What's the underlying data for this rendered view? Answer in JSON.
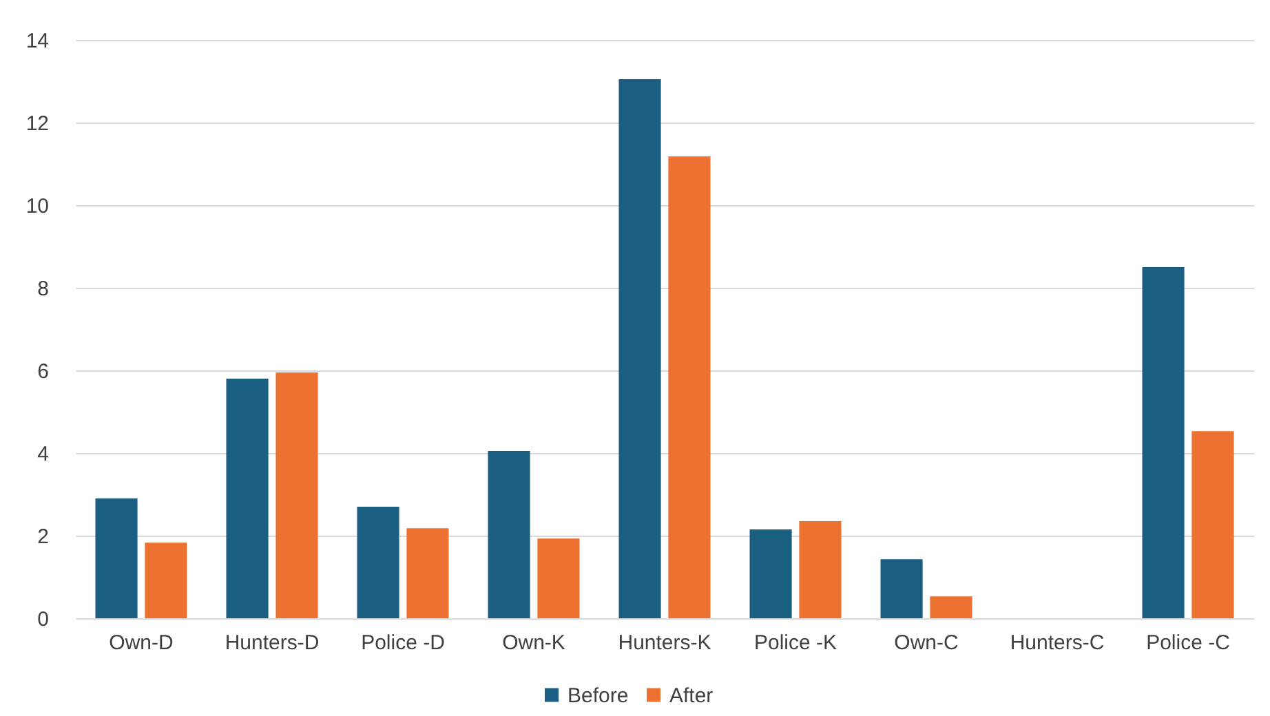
{
  "chart_data": {
    "type": "bar",
    "categories": [
      "Own-D",
      "Hunters-D",
      "Police -D",
      "Own-K",
      "Hunters-K",
      "Police -K",
      "Own-C",
      "Hunters-C",
      "Police -C"
    ],
    "series": [
      {
        "name": "Before",
        "color": "#1a5f82",
        "values": [
          2.9,
          5.8,
          2.7,
          4.05,
          13.05,
          2.15,
          1.43,
          0,
          8.5
        ]
      },
      {
        "name": "After",
        "color": "#ed7130",
        "values": [
          1.83,
          5.95,
          2.18,
          1.93,
          11.18,
          2.35,
          0.53,
          0,
          4.53
        ]
      }
    ],
    "ylim": [
      0,
      14
    ],
    "yticks": [
      0,
      2,
      4,
      6,
      8,
      10,
      12,
      14
    ],
    "grid": "y",
    "legend": "bottom"
  }
}
